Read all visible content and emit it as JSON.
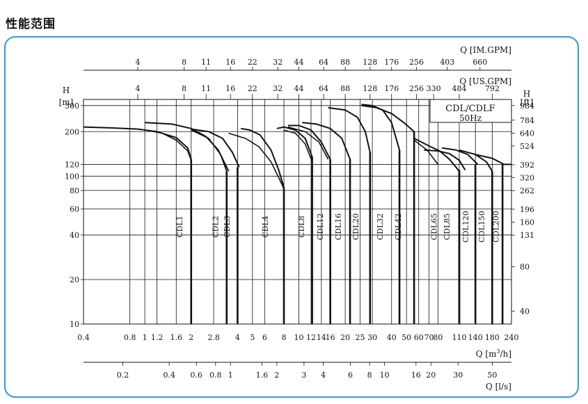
{
  "page": {
    "heading": "性能范围"
  },
  "chart_data": {
    "type": "line",
    "title": "CDL/CDLF",
    "subtitle": "50Hz",
    "xlabel_main": "Q [m",
    "xlabel_main_sup": "3",
    "xlabel_main_end": "/h]",
    "xlabel_ls": "Q [l/s]",
    "xlabel_us": "Q [US.GPM]",
    "xlabel_im": "Q [IM.GPM]",
    "ylabel_left_top": "H",
    "ylabel_left_unit": "[m]",
    "ylabel_right_top": "H",
    "ylabel_right_unit": "[ft]",
    "x_scale": "log",
    "y_scale": "log",
    "xlim": [
      0.4,
      240
    ],
    "ylim": [
      10,
      330
    ],
    "grid": true,
    "x_ticks": [
      {
        "v": 0.4,
        "l": "0.4"
      },
      {
        "v": 0.8,
        "l": "0.8"
      },
      {
        "v": 1,
        "l": "1"
      },
      {
        "v": 1.2,
        "l": "1.2"
      },
      {
        "v": 1.6,
        "l": "1.6"
      },
      {
        "v": 2,
        "l": "2"
      },
      {
        "v": 2.8,
        "l": "2.8"
      },
      {
        "v": 4,
        "l": "4"
      },
      {
        "v": 5,
        "l": "5"
      },
      {
        "v": 6,
        "l": "6"
      },
      {
        "v": 8,
        "l": "8"
      },
      {
        "v": 10,
        "l": "10"
      },
      {
        "v": 12,
        "l": "12"
      },
      {
        "v": 14,
        "l": "14"
      },
      {
        "v": 16,
        "l": "16"
      },
      {
        "v": 20,
        "l": "20"
      },
      {
        "v": 25,
        "l": "25"
      },
      {
        "v": 30,
        "l": "30"
      },
      {
        "v": 40,
        "l": "40"
      },
      {
        "v": 50,
        "l": "50"
      },
      {
        "v": 60,
        "l": "60"
      },
      {
        "v": 70,
        "l": "70"
      },
      {
        "v": 80,
        "l": "80"
      },
      {
        "v": 110,
        "l": "110"
      },
      {
        "v": 140,
        "l": "140"
      },
      {
        "v": 180,
        "l": "180"
      },
      {
        "v": 240,
        "l": "240"
      }
    ],
    "x_gridlines": [
      0.8,
      1,
      1.2,
      1.6,
      2,
      2.8,
      4,
      5,
      6,
      8,
      10,
      12,
      14,
      16,
      20,
      25,
      30,
      40,
      50,
      60,
      70,
      80,
      110,
      140,
      180
    ],
    "y_ticks_left": [
      {
        "v": 10,
        "l": "10"
      },
      {
        "v": 20,
        "l": "20"
      },
      {
        "v": 40,
        "l": "40"
      },
      {
        "v": 60,
        "l": "60"
      },
      {
        "v": 80,
        "l": "80"
      },
      {
        "v": 100,
        "l": "100"
      },
      {
        "v": 120,
        "l": "120"
      },
      {
        "v": 200,
        "l": "200"
      },
      {
        "v": 300,
        "l": "300"
      }
    ],
    "y_ticks_right": [
      {
        "m": 12.19,
        "l": "40"
      },
      {
        "m": 24.38,
        "l": "80"
      },
      {
        "m": 39.93,
        "l": "131"
      },
      {
        "m": 48.77,
        "l": "160"
      },
      {
        "m": 59.74,
        "l": "196"
      },
      {
        "m": 79.86,
        "l": "262"
      },
      {
        "m": 97.54,
        "l": "320"
      },
      {
        "m": 119.48,
        "l": "392"
      },
      {
        "m": 159.72,
        "l": "524"
      },
      {
        "m": 195.07,
        "l": "640"
      },
      {
        "m": 238.96,
        "l": "784"
      },
      {
        "m": 299.92,
        "l": "984"
      }
    ],
    "us_gpm_ticks": [
      {
        "q": 0.9,
        "l": "4"
      },
      {
        "q": 1.8,
        "l": "8"
      },
      {
        "q": 2.5,
        "l": "11"
      },
      {
        "q": 3.6,
        "l": "16"
      },
      {
        "q": 5,
        "l": "22"
      },
      {
        "q": 7.3,
        "l": "32"
      },
      {
        "q": 10,
        "l": "44"
      },
      {
        "q": 14.5,
        "l": "64"
      },
      {
        "q": 20,
        "l": "88"
      },
      {
        "q": 29,
        "l": "128"
      },
      {
        "q": 40,
        "l": "176"
      },
      {
        "q": 58,
        "l": "256"
      },
      {
        "q": 75,
        "l": "330"
      },
      {
        "q": 110,
        "l": "484"
      },
      {
        "q": 180,
        "l": "792"
      }
    ],
    "im_gpm_ticks": [
      {
        "q": 0.9,
        "l": "4"
      },
      {
        "q": 1.8,
        "l": "8"
      },
      {
        "q": 2.5,
        "l": "11"
      },
      {
        "q": 3.6,
        "l": "16"
      },
      {
        "q": 5,
        "l": "22"
      },
      {
        "q": 7.3,
        "l": "32"
      },
      {
        "q": 10,
        "l": "44"
      },
      {
        "q": 14.5,
        "l": "64"
      },
      {
        "q": 20,
        "l": "88"
      },
      {
        "q": 29,
        "l": "128"
      },
      {
        "q": 40,
        "l": "176"
      },
      {
        "q": 58,
        "l": "256"
      },
      {
        "q": 92,
        "l": "403"
      },
      {
        "q": 150,
        "l": "660"
      }
    ],
    "ls_ticks": [
      {
        "q": 0.72,
        "l": "0.2"
      },
      {
        "q": 1.44,
        "l": "0.4"
      },
      {
        "q": 2.16,
        "l": "0.6"
      },
      {
        "q": 2.88,
        "l": "0.8"
      },
      {
        "q": 3.6,
        "l": "1"
      },
      {
        "q": 5.76,
        "l": "1.6"
      },
      {
        "q": 7.2,
        "l": "2"
      },
      {
        "q": 10.8,
        "l": "3"
      },
      {
        "q": 14.4,
        "l": "4"
      },
      {
        "q": 21.6,
        "l": "6"
      },
      {
        "q": 28.8,
        "l": "8"
      },
      {
        "q": 36,
        "l": "10"
      },
      {
        "q": 57.6,
        "l": "16"
      },
      {
        "q": 72,
        "l": "20"
      },
      {
        "q": 108,
        "l": "30"
      },
      {
        "q": 180,
        "l": "50"
      }
    ],
    "series": [
      {
        "name": "CDL1",
        "label_q": 1.75,
        "upper": [
          [
            0.4,
            215
          ],
          [
            0.6,
            212
          ],
          [
            0.9,
            208
          ],
          [
            1.2,
            200
          ],
          [
            1.6,
            182
          ],
          [
            1.9,
            155
          ],
          [
            2.0,
            130
          ]
        ],
        "lower": [
          [
            1.0,
            205
          ],
          [
            1.3,
            195
          ],
          [
            1.6,
            175
          ],
          [
            1.9,
            148
          ],
          [
            2.0,
            128
          ]
        ],
        "q_end": 2.0
      },
      {
        "name": "CDL2",
        "label_q": 3.0,
        "upper": [
          [
            1.0,
            230
          ],
          [
            1.5,
            225
          ],
          [
            2.0,
            210
          ],
          [
            2.5,
            185
          ],
          [
            3.0,
            150
          ],
          [
            3.5,
            108
          ]
        ],
        "lower": [
          [
            2.0,
            205
          ],
          [
            2.6,
            180
          ],
          [
            3.1,
            140
          ],
          [
            3.4,
            108
          ]
        ],
        "q_end": 3.4
      },
      {
        "name": "CDL3",
        "label_q": 3.55,
        "upper": [
          [
            2.0,
            208
          ],
          [
            2.6,
            200
          ],
          [
            3.2,
            180
          ],
          [
            3.7,
            145
          ],
          [
            4.1,
            115
          ]
        ],
        "lower": [],
        "q_end": 4.0
      },
      {
        "name": "CDL4",
        "label_q": 6.3,
        "upper": [
          [
            4.2,
            210
          ],
          [
            4.8,
            205
          ],
          [
            5.6,
            190
          ],
          [
            6.6,
            150
          ],
          [
            7.4,
            110
          ],
          [
            8.0,
            84
          ]
        ],
        "lower": [
          [
            3.5,
            195
          ],
          [
            4.5,
            180
          ],
          [
            5.5,
            158
          ],
          [
            6.6,
            125
          ],
          [
            7.5,
            95
          ],
          [
            8.0,
            82
          ]
        ],
        "q_end": 8.0
      },
      {
        "name": "CDL8",
        "label_q": 10.8,
        "upper": [
          [
            7.2,
            210
          ],
          [
            8,
            215
          ],
          [
            9.5,
            205
          ],
          [
            11,
            180
          ],
          [
            12.2,
            135
          ]
        ],
        "lower": [
          [
            8,
            205
          ],
          [
            9.5,
            195
          ],
          [
            11,
            165
          ],
          [
            12.2,
            125
          ]
        ],
        "q_end": 12.2
      },
      {
        "name": "CDL12",
        "label_q": 14.3,
        "upper": [
          [
            8.5,
            220
          ],
          [
            10,
            220
          ],
          [
            12,
            205
          ],
          [
            14,
            170
          ],
          [
            16,
            130
          ]
        ],
        "lower": [
          [
            8.5,
            215
          ],
          [
            11,
            200
          ],
          [
            13.5,
            170
          ],
          [
            15.5,
            130
          ]
        ],
        "q_end": 16.0
      },
      {
        "name": "CDL16",
        "label_q": 18.8,
        "upper": [
          [
            10.5,
            230
          ],
          [
            13,
            225
          ],
          [
            16,
            210
          ],
          [
            19,
            180
          ],
          [
            21.5,
            130
          ]
        ],
        "lower": [],
        "q_end": 21.5
      },
      {
        "name": "CDL20",
        "label_q": 24.4,
        "upper": [
          [
            15.5,
            290
          ],
          [
            20,
            280
          ],
          [
            24,
            250
          ],
          [
            27,
            200
          ],
          [
            29,
            145
          ]
        ],
        "lower": [],
        "q_end": 29.0
      },
      {
        "name": "CDL32",
        "label_q": 35.0,
        "upper": [
          [
            25.5,
            305
          ],
          [
            30,
            300
          ],
          [
            35,
            280
          ],
          [
            40,
            230
          ],
          [
            45,
            150
          ]
        ],
        "lower": [],
        "q_end": 45.0
      },
      {
        "name": "CDL42",
        "label_q": 45.8,
        "upper": [
          [
            25.5,
            300
          ],
          [
            32,
            290
          ],
          [
            40,
            265
          ],
          [
            48,
            230
          ],
          [
            56,
            200
          ]
        ],
        "lower": [],
        "q_end": 56.0
      },
      {
        "name": "CDL65",
        "label_q": 78.5,
        "upper": [
          [
            56,
            180
          ],
          [
            70,
            160
          ],
          [
            82,
            148
          ],
          [
            95,
            130
          ],
          [
            110,
            108
          ]
        ],
        "lower": [
          [
            56,
            175
          ],
          [
            68,
            150
          ],
          [
            80,
            120
          ]
        ],
        "q_end": 110
      },
      {
        "name": "CDL85",
        "label_q": 95.0,
        "upper": [
          [
            65,
            150
          ],
          [
            80,
            148
          ],
          [
            95,
            142
          ],
          [
            110,
            128
          ],
          [
            120,
            110
          ]
        ],
        "lower": [],
        "q_end": 110
      },
      {
        "name": "CDL120",
        "label_q": 126,
        "upper": [
          [
            85,
            155
          ],
          [
            105,
            150
          ],
          [
            125,
            140
          ],
          [
            145,
            120
          ]
        ],
        "lower": [],
        "q_end": 140
      },
      {
        "name": "CDL150",
        "label_q": 160,
        "upper": [
          [
            110,
            150
          ],
          [
            140,
            140
          ],
          [
            165,
            125
          ],
          [
            180,
            108
          ]
        ],
        "lower": [],
        "q_end": 180
      },
      {
        "name": "CDL200",
        "label_q": 198,
        "upper": [
          [
            140,
            140
          ],
          [
            180,
            132
          ],
          [
            215,
            120
          ],
          [
            240,
            120
          ]
        ],
        "lower": [],
        "q_end": 210
      }
    ]
  }
}
